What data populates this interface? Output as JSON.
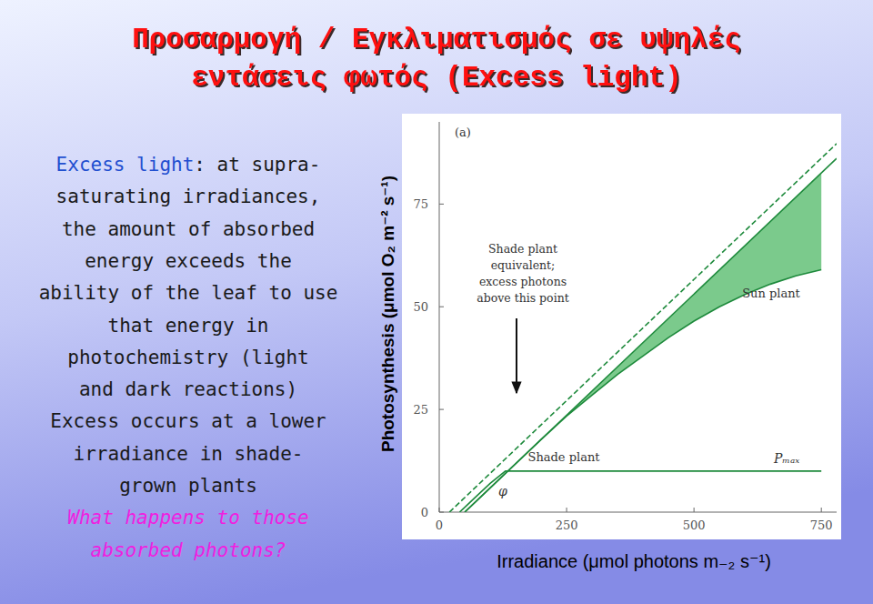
{
  "slide": {
    "title_lines": [
      "Προσαρμογή / Εγκλιματισμός σε υψηλές",
      "εντάσεις φωτός (Excess light)"
    ],
    "term": "Excess light",
    "definition_lines": [
      ": at supra-",
      "saturating irradiances,",
      "the amount of absorbed",
      "energy exceeds the",
      "ability of the leaf to use",
      "that energy in",
      "photochemistry (light",
      "and dark reactions)",
      "Excess occurs at a lower",
      "irradiance in shade-",
      "grown plants"
    ],
    "question_lines": [
      "What happens to those",
      "absorbed photons?"
    ]
  },
  "chart_data": {
    "type": "line",
    "x_label": "Irradiance (μmol photons m₋₂ s⁻¹)",
    "y_label": "Photosynthesis (μmol O₂ m⁻² s⁻¹)",
    "xlim": [
      0,
      780
    ],
    "ylim": [
      0,
      95
    ],
    "xticks": [
      0,
      250,
      500,
      750
    ],
    "yticks": [
      0,
      25,
      50,
      75
    ],
    "grid": false,
    "series": [
      {
        "name": "Sun plant",
        "color": "#1e8a3c",
        "line_style": "solid",
        "x": [
          50,
          100,
          150,
          200,
          250,
          300,
          350,
          400,
          450,
          500,
          550,
          600,
          650,
          700,
          750
        ],
        "values": [
          0,
          5.9,
          11.8,
          17.7,
          23.4,
          28.5,
          33.5,
          38,
          42.5,
          46.5,
          50,
          53,
          55.5,
          57.5,
          59
        ]
      },
      {
        "name": "Shade plant",
        "color": "#1e8a3c",
        "line_style": "solid",
        "x": [
          40,
          70,
          100,
          130,
          750
        ],
        "values": [
          0,
          3.5,
          7,
          10,
          10
        ]
      },
      {
        "color": "#1e8a3c",
        "line_style": "dashed",
        "x": [
          20,
          780
        ],
        "values": [
          0,
          89.7
        ]
      },
      {
        "color": "#1e8a3c",
        "line_style": "solid",
        "x": [
          50,
          780
        ],
        "values": [
          0,
          86.1
        ]
      }
    ],
    "annotations": {
      "panel": "(a)",
      "excess_note": [
        "Shade plant",
        "equivalent;",
        "excess photons",
        "above this point"
      ],
      "pmax": "Pₘₐₓ",
      "phi": "φ"
    }
  }
}
